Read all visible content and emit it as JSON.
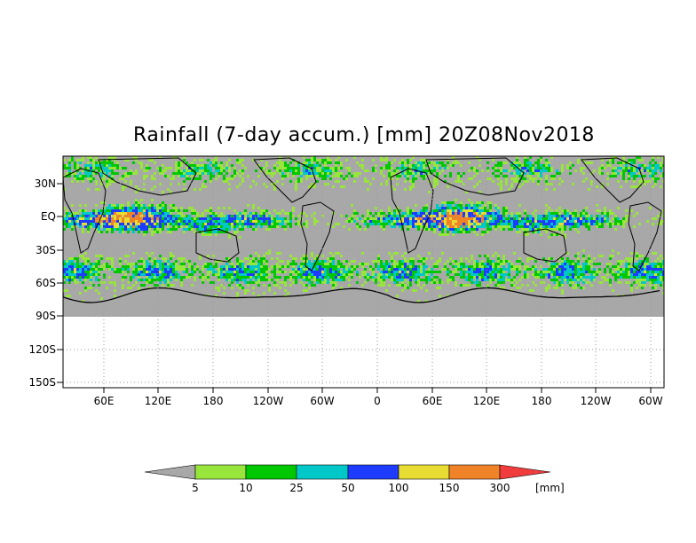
{
  "title": "Rainfall (7-day accum.) [mm] 20Z08Nov2018",
  "y_axis_labels": [
    "30N",
    "EQ",
    "30S",
    "60S",
    "90S",
    "120S",
    "150S"
  ],
  "x_axis_labels": [
    "60E",
    "120E",
    "180",
    "120W",
    "60W",
    "0",
    "60E",
    "120E",
    "180",
    "120W",
    "60W"
  ],
  "colorbar": {
    "labels": [
      "5",
      "10",
      "25",
      "50",
      "100",
      "150",
      "300"
    ],
    "unit": "[mm]",
    "colors": [
      "#a8a8a8",
      "#98e63c",
      "#00c800",
      "#00c8c8",
      "#1e3cff",
      "#e6dc32",
      "#f08228",
      "#f03c3c"
    ]
  },
  "colors": {
    "ocean_background": "#a8a8a8",
    "empty_background": "#ffffff",
    "gridline": "#9a9a9a"
  }
}
